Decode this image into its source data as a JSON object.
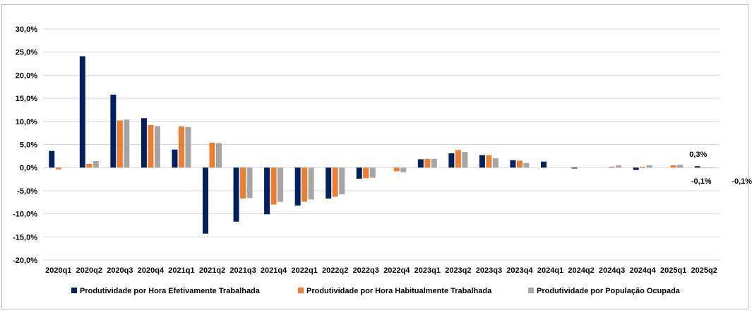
{
  "chart_data": {
    "type": "bar",
    "categories": [
      "2020q1",
      "2020q2",
      "2020q3",
      "2020q4",
      "2021q1",
      "2021q2",
      "2021q3",
      "2021q4",
      "2022q1",
      "2022q2",
      "2022q3",
      "2022q4",
      "2023q1",
      "2023q2",
      "2023q3",
      "2023q4",
      "2024q1",
      "2024q2",
      "2024q3",
      "2024q4",
      "2025q1",
      "2025q2"
    ],
    "series": [
      {
        "name": "Produtividade por Hora Efetivamente Trabalhada",
        "color": "#002060",
        "values": [
          3.6,
          24.1,
          15.8,
          10.7,
          3.9,
          -14.3,
          -11.7,
          -10.1,
          -8.2,
          -6.7,
          -2.4,
          0.0,
          1.8,
          3.1,
          2.7,
          1.6,
          1.3,
          -0.2,
          0.0,
          -0.5,
          0.0,
          0.3
        ]
      },
      {
        "name": "Produtividade por Hora Habitualmente Trabalhada",
        "color": "#ED7D31",
        "values": [
          -0.4,
          0.8,
          10.2,
          9.2,
          8.9,
          5.4,
          -6.7,
          -8.0,
          -7.4,
          -6.3,
          -2.3,
          -0.8,
          1.9,
          3.8,
          2.7,
          1.5,
          0.0,
          0.0,
          0.2,
          0.2,
          0.5,
          -0.1
        ]
      },
      {
        "name": "Produtividade por População Ocupada",
        "color": "#A5A5A5",
        "values": [
          0.0,
          1.4,
          10.4,
          9.0,
          8.8,
          5.3,
          -6.6,
          -7.4,
          -6.9,
          -5.8,
          -2.2,
          -1.0,
          1.9,
          3.4,
          2.0,
          1.0,
          0.0,
          0.0,
          0.5,
          0.5,
          0.6,
          -0.1
        ]
      }
    ],
    "yticks": [
      "30,0%",
      "25,0%",
      "20,0%",
      "15,0%",
      "10,0%",
      "5,0%",
      "0,0%",
      "-5,0%",
      "-10,0%",
      "-15,0%",
      "-20,0%"
    ],
    "ylim": [
      -20,
      30
    ],
    "grid": true,
    "legend_position": "bottom",
    "data_labels": [
      {
        "text": "0,3%",
        "category": "2025q2",
        "series": 0,
        "value": 0.3
      },
      {
        "text": "-0,1%",
        "category": "2025q2",
        "series": 1,
        "value": -0.1
      },
      {
        "text": "-0,1%",
        "category": "2025q2",
        "series": 2,
        "value": -0.1
      }
    ]
  }
}
